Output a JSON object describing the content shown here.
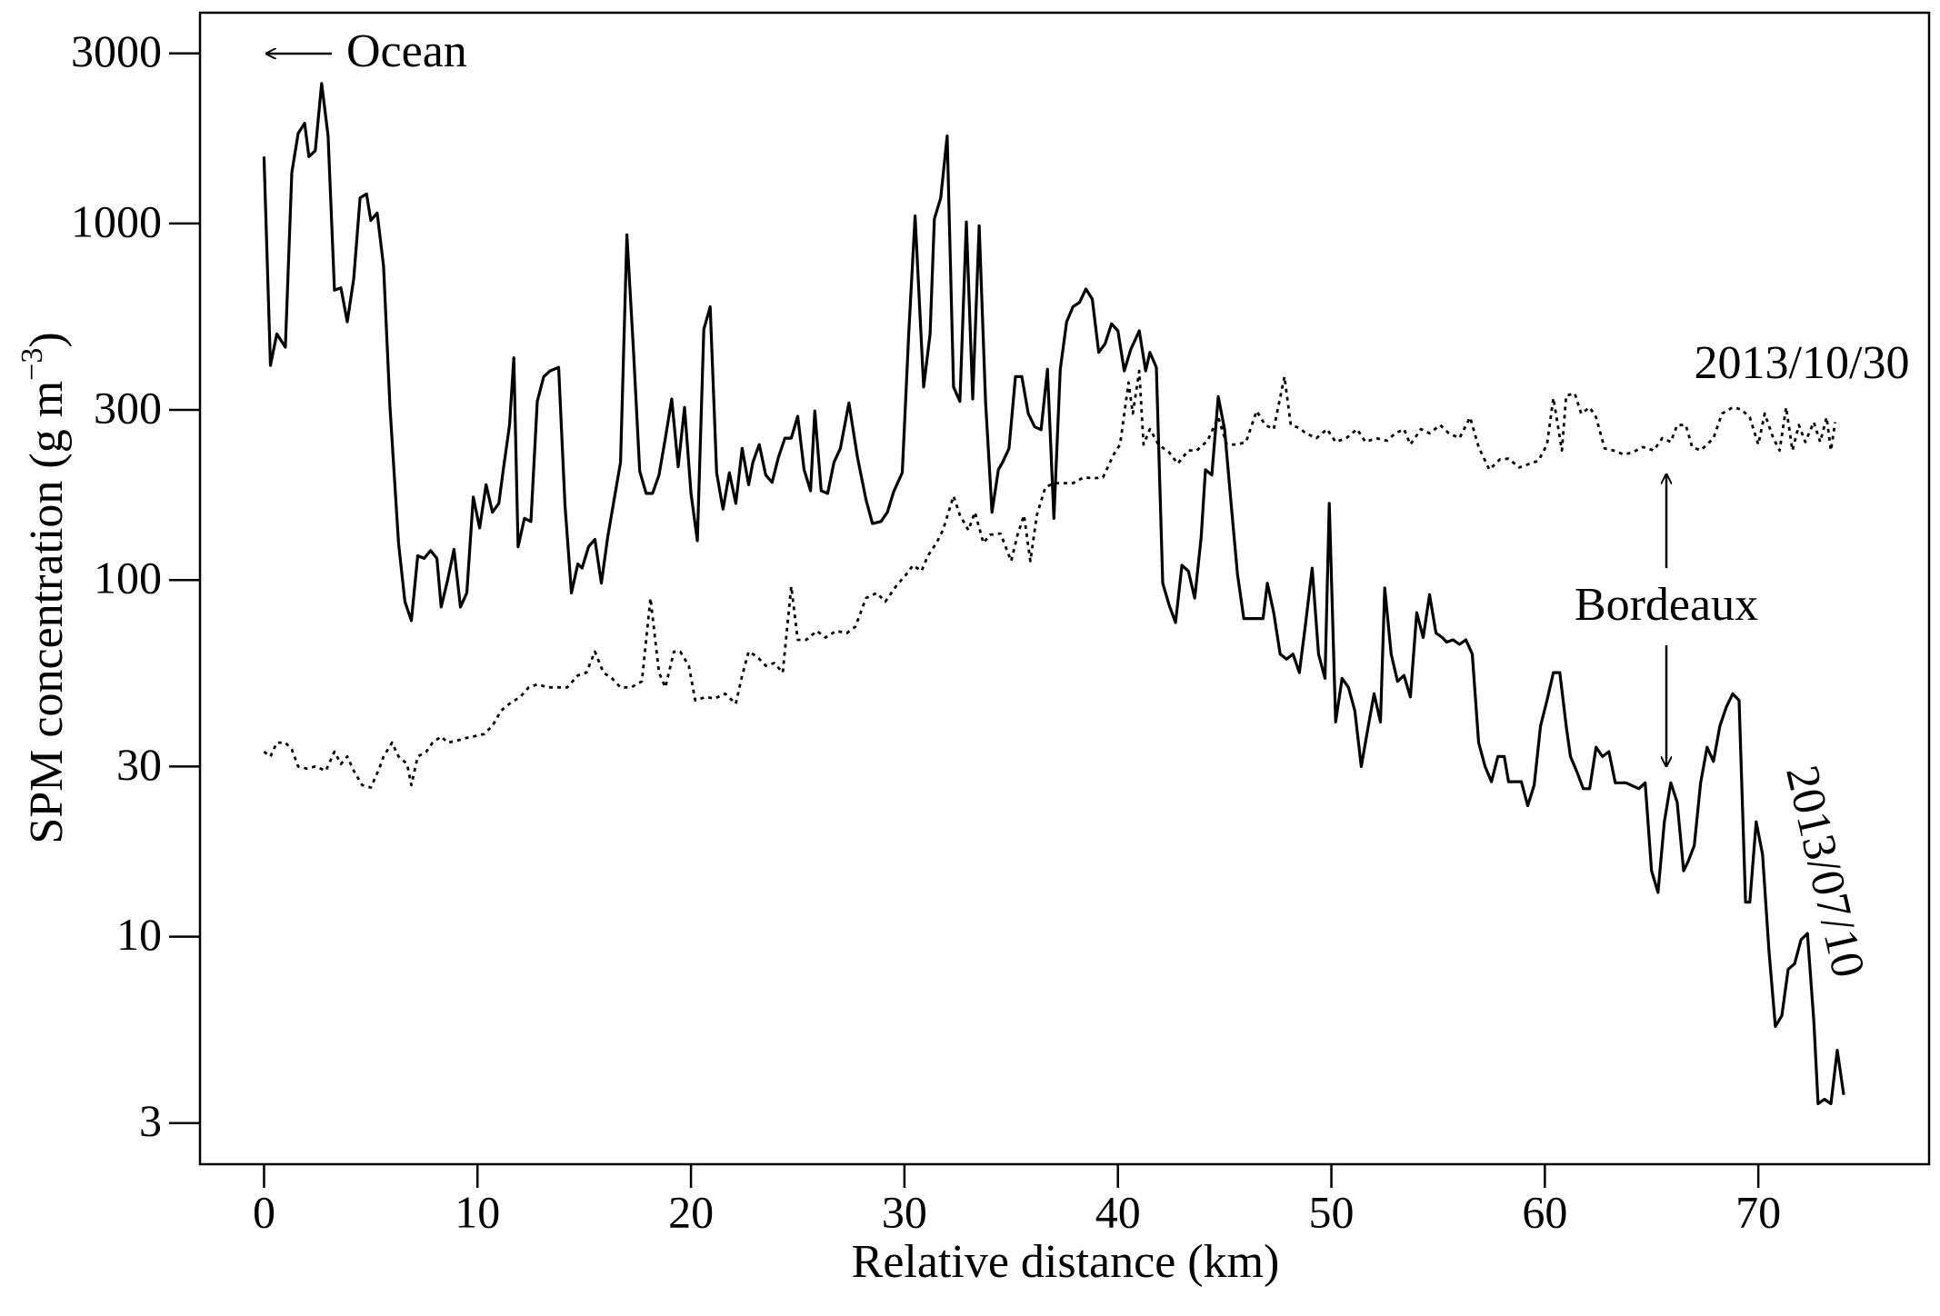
{
  "chart_data": {
    "type": "line",
    "x_label": "Relative distance (km)",
    "y_label_parts": [
      "SPM concentration (g m",
      "−3",
      ")"
    ],
    "annotations": {
      "ocean": "Ocean",
      "city": "Bordeaux"
    },
    "log_y": true,
    "grid": false,
    "xlim": [
      -3,
      78
    ],
    "ylim": [
      2.3,
      3900
    ],
    "xticks": [
      0,
      10,
      20,
      30,
      40,
      50,
      60,
      70
    ],
    "yticks": [
      3,
      10,
      30,
      100,
      300,
      1000,
      3000
    ],
    "series": [
      {
        "name": "2013/07/10",
        "color": "#000000",
        "style": "solid",
        "x": [
          0,
          0.3,
          0.6,
          1.0,
          1.3,
          1.6,
          1.9,
          2.1,
          2.4,
          2.7,
          3.0,
          3.3,
          3.6,
          3.9,
          4.2,
          4.5,
          4.8,
          5.0,
          5.3,
          5.6,
          5.9,
          6.3,
          6.6,
          6.9,
          7.2,
          7.5,
          7.8,
          8.1,
          8.3,
          8.6,
          8.9,
          9.2,
          9.5,
          9.8,
          10.1,
          10.4,
          10.7,
          11.0,
          11.2,
          11.5,
          11.7,
          11.9,
          12.2,
          12.5,
          12.8,
          13.1,
          13.4,
          13.8,
          14.1,
          14.4,
          14.7,
          14.9,
          15.2,
          15.5,
          15.8,
          16.1,
          16.4,
          16.7,
          17.0,
          17.3,
          17.6,
          17.9,
          18.2,
          18.5,
          18.8,
          19.1,
          19.4,
          19.7,
          20.0,
          20.3,
          20.6,
          20.9,
          21.2,
          21.5,
          21.8,
          22.1,
          22.4,
          22.7,
          22.9,
          23.2,
          23.5,
          23.8,
          24.1,
          24.4,
          24.7,
          25.0,
          25.3,
          25.6,
          25.8,
          26.1,
          26.4,
          26.7,
          27.0,
          27.4,
          27.8,
          28.2,
          28.5,
          28.9,
          29.2,
          29.5,
          29.9,
          30.2,
          30.5,
          30.9,
          31.2,
          31.4,
          31.7,
          32.0,
          32.3,
          32.6,
          32.9,
          33.2,
          33.5,
          33.8,
          34.1,
          34.4,
          34.6,
          34.9,
          35.2,
          35.5,
          35.8,
          36.1,
          36.4,
          36.7,
          37.0,
          37.3,
          37.6,
          37.9,
          38.2,
          38.5,
          38.8,
          39.1,
          39.4,
          39.7,
          40.0,
          40.3,
          40.6,
          41.0,
          41.3,
          41.5,
          41.8,
          42.1,
          42.4,
          42.7,
          43.0,
          43.3,
          43.6,
          43.9,
          44.1,
          44.4,
          44.7,
          45.0,
          45.3,
          45.6,
          45.9,
          46.5,
          46.8,
          47.0,
          47.3,
          47.6,
          47.9,
          48.2,
          48.5,
          48.8,
          49.1,
          49.4,
          49.7,
          49.9,
          50.2,
          50.5,
          50.8,
          51.1,
          51.4,
          51.7,
          52.0,
          52.3,
          52.5,
          52.8,
          53.1,
          53.4,
          53.7,
          54.0,
          54.3,
          54.6,
          54.9,
          55.2,
          55.4,
          55.7,
          56.0,
          56.3,
          56.6,
          56.9,
          57.2,
          57.5,
          57.8,
          58.1,
          58.3,
          58.6,
          58.9,
          59.2,
          59.5,
          59.8,
          60.1,
          60.4,
          60.7,
          61.0,
          61.2,
          61.5,
          61.8,
          62.1,
          62.4,
          62.7,
          63.0,
          63.3,
          63.8,
          64.4,
          64.7,
          65.0,
          65.3,
          65.6,
          65.9,
          66.2,
          66.5,
          66.7,
          67.0,
          67.3,
          67.6,
          67.9,
          68.2,
          68.5,
          68.8,
          69.1,
          69.4,
          69.6,
          69.9,
          70.2,
          70.5,
          70.8,
          71.1,
          71.4,
          71.7,
          72.0,
          72.3,
          72.6,
          72.8,
          73.1,
          73.4,
          73.7,
          74.0
        ],
        "values": [
          1540,
          400,
          490,
          450,
          1390,
          1790,
          1910,
          1540,
          1600,
          2470,
          1760,
          650,
          660,
          530,
          700,
          1180,
          1210,
          1020,
          1070,
          760,
          305,
          127,
          87,
          77,
          117,
          115,
          121,
          115,
          84,
          100,
          122,
          84,
          92,
          171,
          140,
          185,
          155,
          164,
          202,
          272,
          420,
          124,
          149,
          146,
          317,
          372,
          386,
          395,
          162,
          92,
          111,
          108,
          124,
          130,
          98,
          132,
          168,
          214,
          930,
          446,
          202,
          175,
          175,
          197,
          250,
          322,
          208,
          305,
          175,
          129,
          505,
          584,
          200,
          158,
          200,
          164,
          234,
          185,
          214,
          240,
          197,
          188,
          221,
          250,
          250,
          288,
          204,
          178,
          298,
          178,
          175,
          214,
          234,
          314,
          221,
          168,
          144,
          146,
          155,
          177,
          200,
          490,
          1050,
          348,
          490,
          1030,
          1180,
          1760,
          348,
          317,
          1010,
          322,
          985,
          317,
          155,
          204,
          214,
          234,
          372,
          372,
          293,
          269,
          264,
          390,
          149,
          390,
          530,
          585,
          600,
          655,
          614,
          435,
          460,
          523,
          500,
          386,
          443,
          500,
          386,
          435,
          395,
          98,
          85,
          76,
          110,
          106,
          89,
          132,
          204,
          197,
          327,
          264,
          164,
          104,
          78,
          78,
          78,
          98,
          81,
          62,
          60,
          62,
          55,
          76,
          108,
          62,
          53,
          164,
          40,
          53,
          50,
          43,
          30,
          38,
          48,
          40,
          95,
          62,
          52,
          54,
          47,
          81,
          69,
          91,
          71,
          69,
          67,
          68,
          66,
          68,
          62,
          35,
          30,
          27.2,
          32,
          32,
          27.2,
          27.2,
          27.2,
          23.3,
          26.6,
          39,
          46,
          55,
          55,
          39,
          32,
          29,
          26,
          26,
          34,
          32,
          33,
          27,
          27,
          26,
          27,
          15.3,
          13.3,
          21,
          27,
          23.8,
          15.3,
          16.2,
          18,
          27,
          34,
          31,
          39,
          44,
          48,
          46,
          12.5,
          12.5,
          21,
          17,
          9.1,
          5.6,
          6.0,
          8.1,
          8.4,
          9.8,
          10.2,
          5.8,
          3.4,
          3.5,
          3.4,
          4.8,
          3.6
        ]
      },
      {
        "name": "2013/10/30",
        "color": "#000000",
        "style": "dotted",
        "x": [
          0,
          0.3,
          0.6,
          1.0,
          1.3,
          1.6,
          2.0,
          2.4,
          2.9,
          3.3,
          3.6,
          3.9,
          4.2,
          4.6,
          5.0,
          5.4,
          5.6,
          6.0,
          6.3,
          6.7,
          6.9,
          7.2,
          7.6,
          7.9,
          8.3,
          8.6,
          9.0,
          9.4,
          9.8,
          10.3,
          10.7,
          11.1,
          11.5,
          12.0,
          12.4,
          12.8,
          13.3,
          13.7,
          14.2,
          14.7,
          15.1,
          15.5,
          15.9,
          16.3,
          16.7,
          17.2,
          17.7,
          18.1,
          18.5,
          18.8,
          19.2,
          19.5,
          19.9,
          20.2,
          20.7,
          21.1,
          21.6,
          22.1,
          22.4,
          22.7,
          23.1,
          23.5,
          23.9,
          24.3,
          24.7,
          25.0,
          25.4,
          25.9,
          26.3,
          26.8,
          27.3,
          27.7,
          28.2,
          28.7,
          29.1,
          29.6,
          30.1,
          30.4,
          30.8,
          31.1,
          31.5,
          31.8,
          32.3,
          32.6,
          33.0,
          33.3,
          33.7,
          34.0,
          34.5,
          35.0,
          35.3,
          35.6,
          35.9,
          36.2,
          36.6,
          37.0,
          37.5,
          37.9,
          38.4,
          38.9,
          39.3,
          39.8,
          40.1,
          40.5,
          40.7,
          41.0,
          41.2,
          41.5,
          41.9,
          42.4,
          42.8,
          43.3,
          43.7,
          44.2,
          44.7,
          45.1,
          45.6,
          46.0,
          46.5,
          46.9,
          47.3,
          47.8,
          48.1,
          48.5,
          48.8,
          49.3,
          49.8,
          50.2,
          50.7,
          51.2,
          51.6,
          52.1,
          52.6,
          53.0,
          53.4,
          53.7,
          54.2,
          54.6,
          55.1,
          55.5,
          56.0,
          56.5,
          56.9,
          57.4,
          57.9,
          58.3,
          58.8,
          59.3,
          59.7,
          60.1,
          60.4,
          60.8,
          61.0,
          61.4,
          61.7,
          62.1,
          62.4,
          62.8,
          63.2,
          63.7,
          64.1,
          64.6,
          65.1,
          65.5,
          65.9,
          66.2,
          66.6,
          66.9,
          67.3,
          67.6,
          67.9,
          68.3,
          68.8,
          69.2,
          69.6,
          70.0,
          70.3,
          70.7,
          71.0,
          71.3,
          71.6,
          71.9,
          72.2,
          72.6,
          72.9,
          73.2,
          73.4,
          73.6
        ],
        "values": [
          33,
          32,
          35,
          35,
          33.5,
          30,
          29.6,
          30,
          29.2,
          33,
          30.5,
          32,
          29.2,
          26.6,
          26.2,
          29.6,
          32,
          35,
          32,
          30.5,
          26.6,
          32,
          33,
          35,
          36.4,
          35,
          35.4,
          36,
          36.4,
          37,
          39,
          43,
          45,
          47,
          50,
          51,
          50,
          50,
          50,
          54,
          55,
          63,
          55,
          53,
          50,
          50,
          52,
          89,
          55,
          50,
          63,
          63,
          57.5,
          46,
          47,
          46.5,
          48,
          45,
          54,
          63,
          61,
          57.5,
          58.5,
          55,
          96,
          68,
          68,
          72,
          69,
          72,
          71,
          74,
          89,
          92,
          87,
          96,
          104,
          110,
          106,
          117,
          127,
          138,
          172,
          152,
          138,
          155,
          127,
          134,
          135,
          113,
          134,
          152,
          113,
          152,
          182,
          187,
          187,
          187,
          194,
          193,
          194,
          225,
          240,
          358,
          293,
          386,
          240,
          265,
          240,
          228,
          212,
          231,
          231,
          246,
          286,
          240,
          240,
          244,
          298,
          272,
          265,
          372,
          272,
          267,
          258,
          250,
          265,
          244,
          250,
          265,
          244,
          250,
          246,
          258,
          265,
          240,
          265,
          258,
          272,
          258,
          250,
          286,
          236,
          204,
          218,
          219,
          207,
          212,
          216,
          240,
          324,
          231,
          329,
          334,
          293,
          305,
          286,
          234,
          231,
          225,
          228,
          236,
          231,
          250,
          244,
          272,
          272,
          236,
          231,
          240,
          250,
          293,
          305,
          301,
          286,
          240,
          293,
          250,
          231,
          305,
          231,
          272,
          244,
          277,
          244,
          286,
          231,
          277
        ]
      }
    ]
  }
}
